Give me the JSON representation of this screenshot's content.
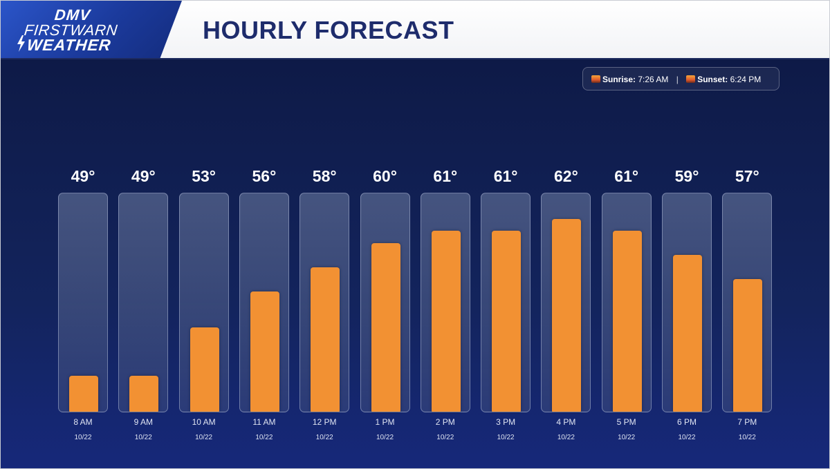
{
  "header": {
    "logo_line1": "DMV",
    "logo_line2": "FIRSTWARN",
    "logo_line3": "WEATHER",
    "title": "HOURLY FORECAST"
  },
  "sun": {
    "sunrise_label": "Sunrise:",
    "sunrise_time": "7:26 AM",
    "separator": "|",
    "sunset_label": "Sunset:",
    "sunset_time": "6:24 PM"
  },
  "colors": {
    "bar": "#f29133",
    "panel_top": "#0e1a47",
    "title": "#1e2c6c"
  },
  "chart_data": {
    "type": "bar",
    "title": "HOURLY FORECAST",
    "xlabel": "",
    "ylabel": "",
    "grid": false,
    "categories": [
      "8 AM",
      "9 AM",
      "10 AM",
      "11 AM",
      "12 PM",
      "1 PM",
      "2 PM",
      "3 PM",
      "4 PM",
      "5 PM",
      "6 PM",
      "7 PM"
    ],
    "dates": [
      "10/22",
      "10/22",
      "10/22",
      "10/22",
      "10/22",
      "10/22",
      "10/22",
      "10/22",
      "10/22",
      "10/22",
      "10/22",
      "10/22"
    ],
    "values": [
      49,
      49,
      53,
      56,
      58,
      60,
      61,
      61,
      62,
      61,
      59,
      57
    ],
    "value_suffix": "°",
    "ylim": [
      46,
      63
    ]
  }
}
